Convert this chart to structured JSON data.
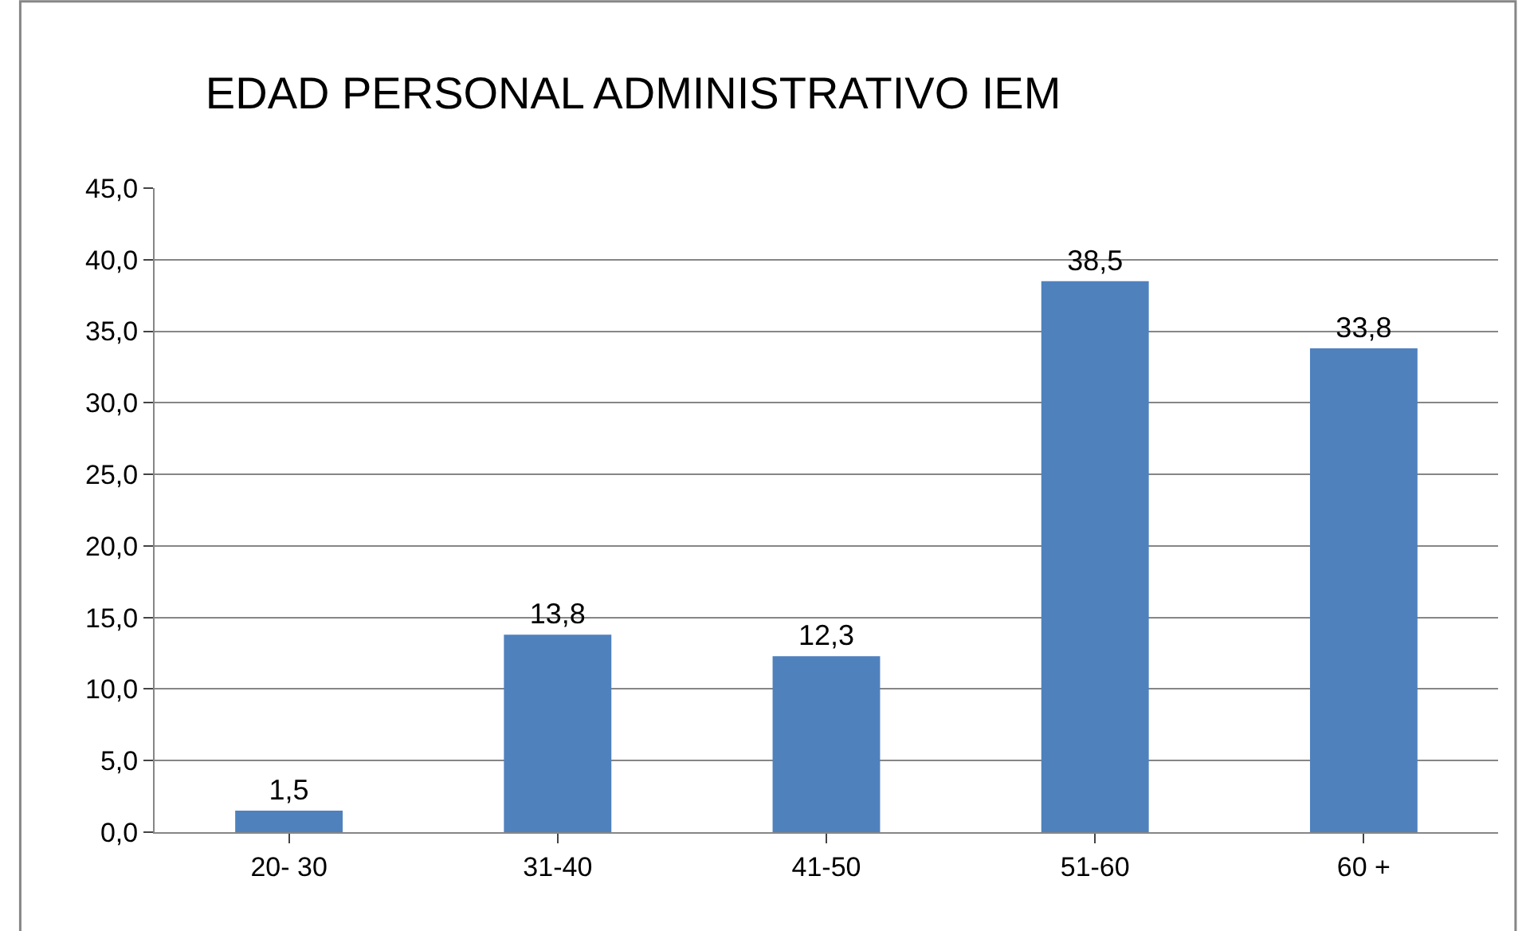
{
  "chart_data": {
    "type": "bar",
    "title": "EDAD PERSONAL ADMINISTRATIVO IEM",
    "categories": [
      "20- 30",
      "31-40",
      "41-50",
      "51-60",
      "60 +"
    ],
    "values": [
      1.5,
      13.8,
      12.3,
      38.5,
      33.8
    ],
    "value_labels": [
      "1,5",
      "13,8",
      "12,3",
      "38,5",
      "33,8"
    ],
    "color": "#4f81bd",
    "ylim": [
      0,
      45
    ],
    "yticks": [
      {
        "value": 0,
        "label": "0,0"
      },
      {
        "value": 5,
        "label": "5,0"
      },
      {
        "value": 10,
        "label": "10,0"
      },
      {
        "value": 15,
        "label": "15,0"
      },
      {
        "value": 20,
        "label": "20,0"
      },
      {
        "value": 25,
        "label": "25,0"
      },
      {
        "value": 30,
        "label": "30,0"
      },
      {
        "value": 35,
        "label": "35,0"
      },
      {
        "value": 40,
        "label": "40,0"
      },
      {
        "value": 45,
        "label": "45,0"
      }
    ],
    "grid": "y"
  }
}
